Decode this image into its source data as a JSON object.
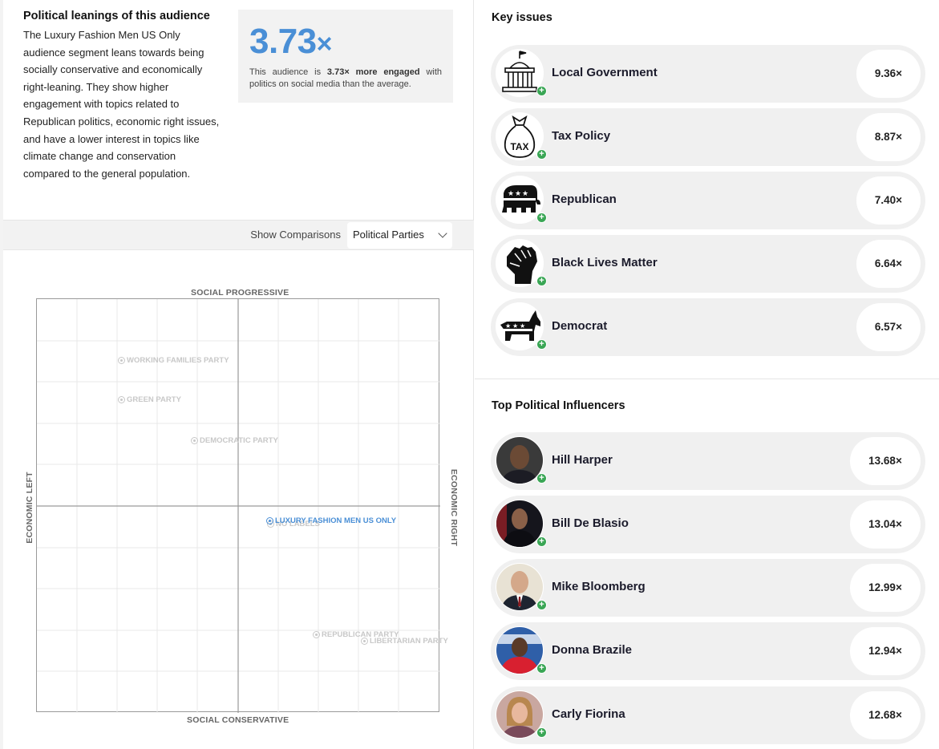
{
  "summary": {
    "title": "Political leanings of this audience",
    "body": "The Luxury Fashion Men US Only audience segment leans towards being socially conservative and economically right-leaning. They show higher engagement with topics related to Republican politics, economic right issues, and have a lower interest in topics like climate change and conservation compared to the general population."
  },
  "engagement": {
    "value": "3.73",
    "suffix": "×",
    "desc_prefix": "This audience is ",
    "desc_bold": "3.73× more engaged",
    "desc_suffix": " with politics on social media than the average."
  },
  "comparisons": {
    "label": "Show Comparisons",
    "selected": "Political Parties"
  },
  "compass": {
    "top_label": "SOCIAL PROGRESSIVE",
    "bottom_label": "SOCIAL CONSERVATIVE",
    "left_label": "ECONOMIC LEFT",
    "right_label": "ECONOMIC RIGHT",
    "parties": [
      {
        "name": "WORKING FAMILIES PARTY"
      },
      {
        "name": "GREEN PARTY"
      },
      {
        "name": "DEMOCRATIC PARTY"
      },
      {
        "name": "NO LABELS"
      },
      {
        "name": "LUXURY FASHION MEN US ONLY"
      },
      {
        "name": "REPUBLICAN PARTY"
      },
      {
        "name": "LIBERTARIAN PARTY"
      }
    ]
  },
  "key_issues": {
    "title": "Key issues",
    "items": [
      {
        "name": "Local Government",
        "value": "9.36×",
        "icon": "capitol-building-icon"
      },
      {
        "name": "Tax Policy",
        "value": "8.87×",
        "icon": "tax-bag-icon"
      },
      {
        "name": "Republican",
        "value": "7.40×",
        "icon": "elephant-icon"
      },
      {
        "name": "Black Lives Matter",
        "value": "6.64×",
        "icon": "raised-fist-icon"
      },
      {
        "name": "Democrat",
        "value": "6.57×",
        "icon": "donkey-icon"
      }
    ]
  },
  "influencers": {
    "title": "Top Political Influencers",
    "items": [
      {
        "name": "Hill Harper",
        "value": "13.68×"
      },
      {
        "name": "Bill De Blasio",
        "value": "13.04×"
      },
      {
        "name": "Mike Bloomberg",
        "value": "12.99×"
      },
      {
        "name": "Donna Brazile",
        "value": "12.94×"
      },
      {
        "name": "Carly Fiorina",
        "value": "12.68×"
      }
    ]
  },
  "colors": {
    "accent": "#4a8fd6",
    "plus": "#3aa655",
    "row_bg": "#f0f0f0"
  }
}
